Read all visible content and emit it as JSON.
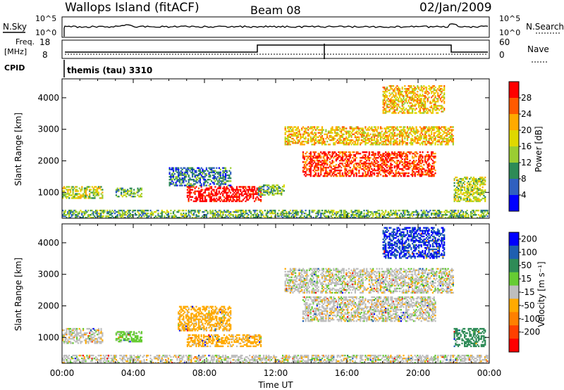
{
  "header": {
    "station": "Wallops Island (fitACF)",
    "beam": "Beam 08",
    "date": "02/Jan/2009"
  },
  "top_panels": {
    "nsky_label": "N.Sky",
    "nsearch_label": "N.Search",
    "sky_ticks": [
      "10^5",
      "10^0"
    ],
    "freq_label_1": "Freq.",
    "freq_label_2": "[MHz]",
    "freq_ticks": [
      18,
      8
    ],
    "nave_label": "Nave",
    "nave_ticks": [
      60,
      0
    ],
    "cpid_label": "CPID",
    "cpid_text": "themis (tau) 3310"
  },
  "colorbars": {
    "power": {
      "title": "Power [dB]",
      "ticks": [
        28,
        24,
        20,
        16,
        12,
        8,
        4
      ],
      "colors": [
        "#ff0000",
        "#ff5a00",
        "#ffaa00",
        "#dfd800",
        "#9acd32",
        "#2e8b57",
        "#3060c0",
        "#0000ff"
      ]
    },
    "velocity": {
      "title": "Velocity [m s⁻¹]",
      "ticks": [
        200,
        100,
        50,
        15,
        -15,
        -50,
        -100,
        -200
      ],
      "colors": [
        "#0000ff",
        "#1f5fb0",
        "#2e8b57",
        "#66cc33",
        "#bebebe",
        "#ffaa00",
        "#ff8000",
        "#ff4000",
        "#ff0000"
      ]
    }
  },
  "time_axis": {
    "xlabel": "Time UT",
    "ticks": [
      "00:00",
      "04:00",
      "08:00",
      "12:00",
      "16:00",
      "20:00",
      "00:00"
    ]
  },
  "chart_data": [
    {
      "type": "heatmap",
      "name": "power",
      "ylabel": "Slant Range [km]",
      "yticks": [
        1000,
        2000,
        3000,
        4000
      ],
      "ylim": [
        180,
        4600
      ],
      "xlim_hours": [
        0,
        24
      ],
      "colorbar_unit": "dB",
      "regions": [
        {
          "t": [
            0.0,
            2.3
          ],
          "r": [
            800,
            1200
          ],
          "level": 3
        },
        {
          "t": [
            3.0,
            4.5
          ],
          "r": [
            850,
            1150
          ],
          "level": 2
        },
        {
          "t": [
            7.0,
            11.2
          ],
          "r": [
            700,
            1200
          ],
          "level": 7
        },
        {
          "t": [
            6.0,
            9.5
          ],
          "r": [
            1200,
            1800
          ],
          "level": 1
        },
        {
          "t": [
            11.0,
            12.5
          ],
          "r": [
            900,
            1250
          ],
          "level": 2
        },
        {
          "t": [
            12.5,
            22.0
          ],
          "r": [
            2500,
            3100
          ],
          "level": 4
        },
        {
          "t": [
            13.5,
            21.0
          ],
          "r": [
            1500,
            2300
          ],
          "level": 6
        },
        {
          "t": [
            18.0,
            21.5
          ],
          "r": [
            3500,
            4400
          ],
          "level": 4
        },
        {
          "t": [
            22.0,
            23.8
          ],
          "r": [
            700,
            1500
          ],
          "level": 3
        },
        {
          "t": [
            0.0,
            24.0
          ],
          "r": [
            180,
            450
          ],
          "level": 2
        }
      ]
    },
    {
      "type": "heatmap",
      "name": "velocity",
      "ylabel": "Slant Range [km]",
      "yticks": [
        1000,
        2000,
        3000,
        4000
      ],
      "ylim": [
        180,
        4600
      ],
      "xlim_hours": [
        0,
        24
      ],
      "colorbar_unit": "m s-1",
      "regions": [
        {
          "t": [
            0.0,
            2.3
          ],
          "r": [
            800,
            1300
          ],
          "vel": 0
        },
        {
          "t": [
            3.0,
            4.5
          ],
          "r": [
            850,
            1200
          ],
          "vel": 30
        },
        {
          "t": [
            7.0,
            11.2
          ],
          "r": [
            700,
            1100
          ],
          "vel": -30
        },
        {
          "t": [
            6.5,
            9.5
          ],
          "r": [
            1200,
            2000
          ],
          "vel": -30
        },
        {
          "t": [
            12.5,
            22.0
          ],
          "r": [
            2400,
            3200
          ],
          "vel": 0
        },
        {
          "t": [
            13.5,
            21.0
          ],
          "r": [
            1500,
            2300
          ],
          "vel": 0
        },
        {
          "t": [
            18.0,
            21.5
          ],
          "r": [
            3500,
            4500
          ],
          "vel": 200
        },
        {
          "t": [
            22.0,
            23.8
          ],
          "r": [
            700,
            1300
          ],
          "vel": 80
        },
        {
          "t": [
            0.0,
            24.0
          ],
          "r": [
            180,
            450
          ],
          "vel": 0
        }
      ]
    }
  ]
}
